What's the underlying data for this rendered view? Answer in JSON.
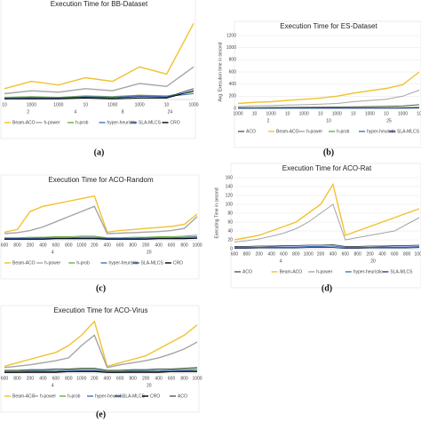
{
  "chart_data": [
    {
      "type": "line",
      "title": "Execution Time for BB-Dataset",
      "caption": "(a)",
      "categories": [
        "10",
        "1000",
        "1000",
        "10",
        "1000",
        "1000",
        "10",
        "1000"
      ],
      "groups": [
        "2",
        "4",
        "8",
        "24"
      ],
      "ylim": [
        0,
        120
      ],
      "series": [
        {
          "name": "Beam-ACO",
          "color": "#f2c12e",
          "values": [
            15,
            25,
            20,
            30,
            25,
            45,
            35,
            105
          ]
        },
        {
          "name": "h-power",
          "color": "#a5a5a5",
          "values": [
            8,
            12,
            10,
            15,
            12,
            22,
            18,
            45
          ]
        },
        {
          "name": "h-prob",
          "color": "#70ad47",
          "values": [
            3,
            4,
            3,
            5,
            4,
            6,
            5,
            10
          ]
        },
        {
          "name": "hyper-heuristic",
          "color": "#4472c4",
          "values": [
            2,
            3,
            2,
            4,
            3,
            5,
            4,
            8
          ]
        },
        {
          "name": "SLA-MLCS",
          "color": "#264478",
          "values": [
            1,
            2,
            2,
            3,
            2,
            4,
            3,
            15
          ]
        },
        {
          "name": "CRO",
          "color": "#000000",
          "values": [
            1,
            1,
            1,
            2,
            1,
            2,
            2,
            12
          ]
        }
      ]
    },
    {
      "type": "line",
      "title": "Execution Time for ES-Dataset",
      "caption": "(b)",
      "ylabel": "Avg. Execution time in second",
      "categories": [
        "1000",
        "10",
        "1000",
        "10",
        "1000",
        "10",
        "1000",
        "10",
        "1000",
        "10",
        "1000",
        "10"
      ],
      "groups": [
        "2",
        "10",
        "25"
      ],
      "ylim": [
        0,
        1200
      ],
      "yticks": [
        0,
        200,
        400,
        600,
        800,
        1000,
        1200
      ],
      "series": [
        {
          "name": "ACO",
          "color": "#595959",
          "values": [
            10,
            12,
            14,
            16,
            18,
            20,
            22,
            26,
            30,
            34,
            40,
            60
          ]
        },
        {
          "name": "Beam-ACO",
          "color": "#f2c12e",
          "values": [
            80,
            100,
            110,
            130,
            150,
            170,
            200,
            250,
            290,
            330,
            390,
            600
          ]
        },
        {
          "name": "h-power",
          "color": "#a5a5a5",
          "values": [
            30,
            40,
            45,
            55,
            60,
            70,
            80,
            110,
            130,
            150,
            200,
            300
          ]
        },
        {
          "name": "h-prob",
          "color": "#70ad47",
          "values": [
            5,
            6,
            6,
            7,
            8,
            8,
            9,
            10,
            11,
            12,
            14,
            20
          ]
        },
        {
          "name": "hyper-heuristic",
          "color": "#4472c4",
          "values": [
            3,
            3,
            4,
            4,
            5,
            5,
            6,
            6,
            7,
            7,
            8,
            12
          ]
        },
        {
          "name": "SLA-MLCS",
          "color": "#264478",
          "values": [
            2,
            2,
            2,
            3,
            3,
            3,
            4,
            4,
            4,
            5,
            5,
            8
          ]
        }
      ]
    },
    {
      "type": "line",
      "title": "Execution Time for ACO-Random",
      "caption": "(c)",
      "categories": [
        "600",
        "800",
        "200",
        "400",
        "600",
        "800",
        "1000",
        "200",
        "400",
        "600",
        "800",
        "200",
        "400",
        "600",
        "800",
        "1000"
      ],
      "groups": [
        "4",
        "20"
      ],
      "ylim": [
        0,
        100
      ],
      "series": [
        {
          "name": "Beam-ACO",
          "color": "#f2c12e",
          "values": [
            15,
            20,
            55,
            65,
            70,
            75,
            80,
            85,
            15,
            18,
            20,
            22,
            24,
            26,
            30,
            50
          ]
        },
        {
          "name": "h-power",
          "color": "#a5a5a5",
          "values": [
            12,
            14,
            18,
            25,
            35,
            45,
            55,
            65,
            12,
            13,
            14,
            15,
            16,
            18,
            22,
            45
          ]
        },
        {
          "name": "h-prob",
          "color": "#70ad47",
          "values": [
            4,
            4,
            5,
            5,
            6,
            6,
            7,
            7,
            4,
            4,
            5,
            5,
            6,
            6,
            7,
            9
          ]
        },
        {
          "name": "hyper-heuristic",
          "color": "#4472c4",
          "values": [
            3,
            3,
            3,
            4,
            4,
            4,
            5,
            5,
            3,
            3,
            3,
            4,
            4,
            4,
            5,
            6
          ]
        },
        {
          "name": "SLA-MLCS",
          "color": "#264478",
          "values": [
            2,
            2,
            2,
            2,
            3,
            3,
            3,
            3,
            2,
            2,
            2,
            2,
            3,
            3,
            3,
            4
          ]
        },
        {
          "name": "CRO",
          "color": "#000000",
          "values": [
            1,
            1,
            1,
            1,
            2,
            2,
            2,
            2,
            1,
            1,
            1,
            1,
            2,
            2,
            2,
            3
          ]
        }
      ]
    },
    {
      "type": "line",
      "title": "Execution Time for ACO-Rat",
      "caption": "(d)",
      "ylabel": "Executing Time in second",
      "categories": [
        "600",
        "800",
        "200",
        "400",
        "600",
        "800",
        "1000",
        "200",
        "400",
        "600",
        "800",
        "200",
        "400",
        "600",
        "800",
        "1000"
      ],
      "groups": [
        "4",
        "20"
      ],
      "ylim": [
        0,
        160
      ],
      "yticks": [
        0,
        20,
        40,
        60,
        80,
        100,
        120,
        140,
        160
      ],
      "series": [
        {
          "name": "ACO",
          "color": "#595959",
          "values": [
            5,
            5,
            6,
            6,
            7,
            7,
            8,
            8,
            9,
            5,
            5,
            6,
            6,
            7,
            7,
            8
          ]
        },
        {
          "name": "Beam-ACO",
          "color": "#f2c12e",
          "values": [
            20,
            25,
            30,
            40,
            50,
            60,
            80,
            100,
            145,
            30,
            40,
            50,
            60,
            70,
            80,
            90
          ]
        },
        {
          "name": "h-power",
          "color": "#a5a5a5",
          "values": [
            15,
            18,
            22,
            28,
            35,
            45,
            60,
            80,
            100,
            20,
            25,
            30,
            35,
            40,
            55,
            70
          ]
        },
        {
          "name": "hyper-heuristic",
          "color": "#4472c4",
          "values": [
            3,
            3,
            3,
            4,
            4,
            4,
            5,
            5,
            6,
            3,
            3,
            3,
            4,
            4,
            4,
            5
          ]
        },
        {
          "name": "SLA-MLCS",
          "color": "#264478",
          "values": [
            1,
            1,
            2,
            2,
            2,
            2,
            3,
            3,
            3,
            1,
            1,
            2,
            2,
            2,
            2,
            3
          ]
        }
      ]
    },
    {
      "type": "line",
      "title": "Execution Time for ACO-Virus",
      "caption": "(e)",
      "categories": [
        "600",
        "800",
        "200",
        "400",
        "600",
        "800",
        "1000",
        "200",
        "400",
        "600",
        "800",
        "200",
        "400",
        "600",
        "800",
        "1000"
      ],
      "groups": [
        "4",
        "20"
      ],
      "ylim": [
        0,
        80
      ],
      "series": [
        {
          "name": "Beam-ACO",
          "color": "#f2c12e",
          "values": [
            10,
            15,
            20,
            25,
            30,
            40,
            55,
            75,
            10,
            15,
            20,
            25,
            35,
            45,
            55,
            70
          ]
        },
        {
          "name": "h-power",
          "color": "#a5a5a5",
          "values": [
            8,
            10,
            12,
            15,
            18,
            22,
            40,
            55,
            8,
            12,
            15,
            18,
            22,
            28,
            35,
            45
          ]
        },
        {
          "name": "h-prob",
          "color": "#70ad47",
          "values": [
            3,
            3,
            4,
            4,
            5,
            5,
            6,
            6,
            3,
            3,
            4,
            4,
            5,
            5,
            6,
            7
          ]
        },
        {
          "name": "hyper-heuristic",
          "color": "#4472c4",
          "values": [
            2,
            2,
            3,
            3,
            3,
            4,
            4,
            4,
            2,
            2,
            3,
            3,
            3,
            4,
            4,
            5
          ]
        },
        {
          "name": "SLA-MLCS",
          "color": "#264478",
          "values": [
            1,
            1,
            2,
            2,
            2,
            2,
            3,
            3,
            1,
            1,
            2,
            2,
            2,
            2,
            3,
            3
          ]
        },
        {
          "name": "CRO",
          "color": "#000000",
          "values": [
            1,
            1,
            1,
            1,
            1,
            2,
            2,
            2,
            1,
            1,
            1,
            1,
            1,
            2,
            2,
            2
          ]
        },
        {
          "name": "ACO",
          "color": "#595959",
          "values": [
            4,
            4,
            5,
            5,
            6,
            6,
            7,
            7,
            4,
            4,
            5,
            5,
            6,
            6,
            7,
            8
          ]
        }
      ]
    }
  ]
}
